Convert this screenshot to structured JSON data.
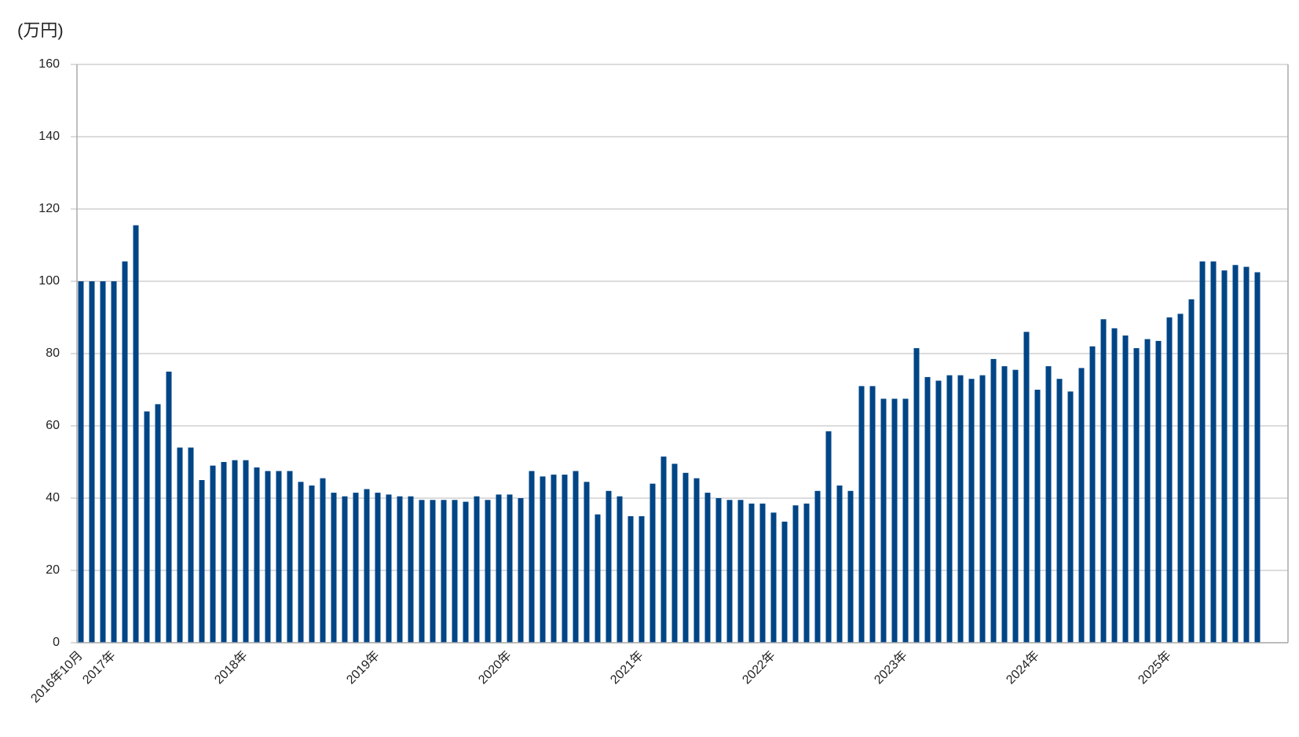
{
  "chart_data": {
    "type": "bar",
    "y_axis_label": "(万円)",
    "categories": [
      "2016年10月",
      null,
      null,
      "2017年",
      null,
      null,
      null,
      null,
      null,
      null,
      null,
      null,
      null,
      null,
      null,
      "2018年",
      null,
      null,
      null,
      null,
      null,
      null,
      null,
      null,
      null,
      null,
      null,
      "2019年",
      null,
      null,
      null,
      null,
      null,
      null,
      null,
      null,
      null,
      null,
      null,
      "2020年",
      null,
      null,
      null,
      null,
      null,
      null,
      null,
      null,
      null,
      null,
      null,
      "2021年",
      null,
      null,
      null,
      null,
      null,
      null,
      null,
      null,
      null,
      null,
      null,
      "2022年",
      null,
      null,
      null,
      null,
      null,
      null,
      null,
      null,
      null,
      null,
      null,
      "2023年",
      null,
      null,
      null,
      null,
      null,
      null,
      null,
      null,
      null,
      null,
      null,
      "2024年",
      null,
      null,
      null,
      null,
      null,
      null,
      null,
      null,
      null,
      null,
      null,
      "2025年",
      null,
      null,
      null,
      null,
      null,
      null,
      null,
      null
    ],
    "values": [
      100,
      100,
      100,
      100,
      105.5,
      115.5,
      64,
      66,
      75,
      54,
      54,
      45,
      49,
      50,
      50.5,
      50.5,
      48.5,
      47.5,
      47.5,
      47.5,
      44.5,
      43.5,
      45.5,
      41.5,
      40.5,
      41.5,
      42.5,
      41.5,
      41,
      40.5,
      40.5,
      39.5,
      39.5,
      39.5,
      39.5,
      39,
      40.5,
      39.5,
      41,
      41,
      40,
      47.5,
      46,
      46.5,
      46.5,
      47.5,
      44.5,
      35.5,
      42,
      40.5,
      35,
      35,
      44,
      51.5,
      49.5,
      47,
      45.5,
      41.5,
      40,
      39.5,
      39.5,
      38.5,
      38.5,
      36,
      33.5,
      38,
      38.5,
      42,
      58.5,
      43.5,
      42,
      71,
      71,
      67.5,
      67.5,
      67.5,
      81.5,
      73.5,
      72.5,
      74,
      74,
      73,
      74,
      78.5,
      76.5,
      75.5,
      86,
      70,
      76.5,
      73,
      69.5,
      76,
      82,
      89.5,
      87,
      85,
      81.5,
      84,
      83.5,
      90,
      91,
      95,
      105.5,
      105.5,
      103,
      104.5,
      104,
      102.5
    ],
    "color": "#004586",
    "ylim": [
      0,
      160
    ],
    "yticks": [
      0,
      20,
      40,
      60,
      80,
      100,
      120,
      140,
      160
    ],
    "grid": true
  }
}
